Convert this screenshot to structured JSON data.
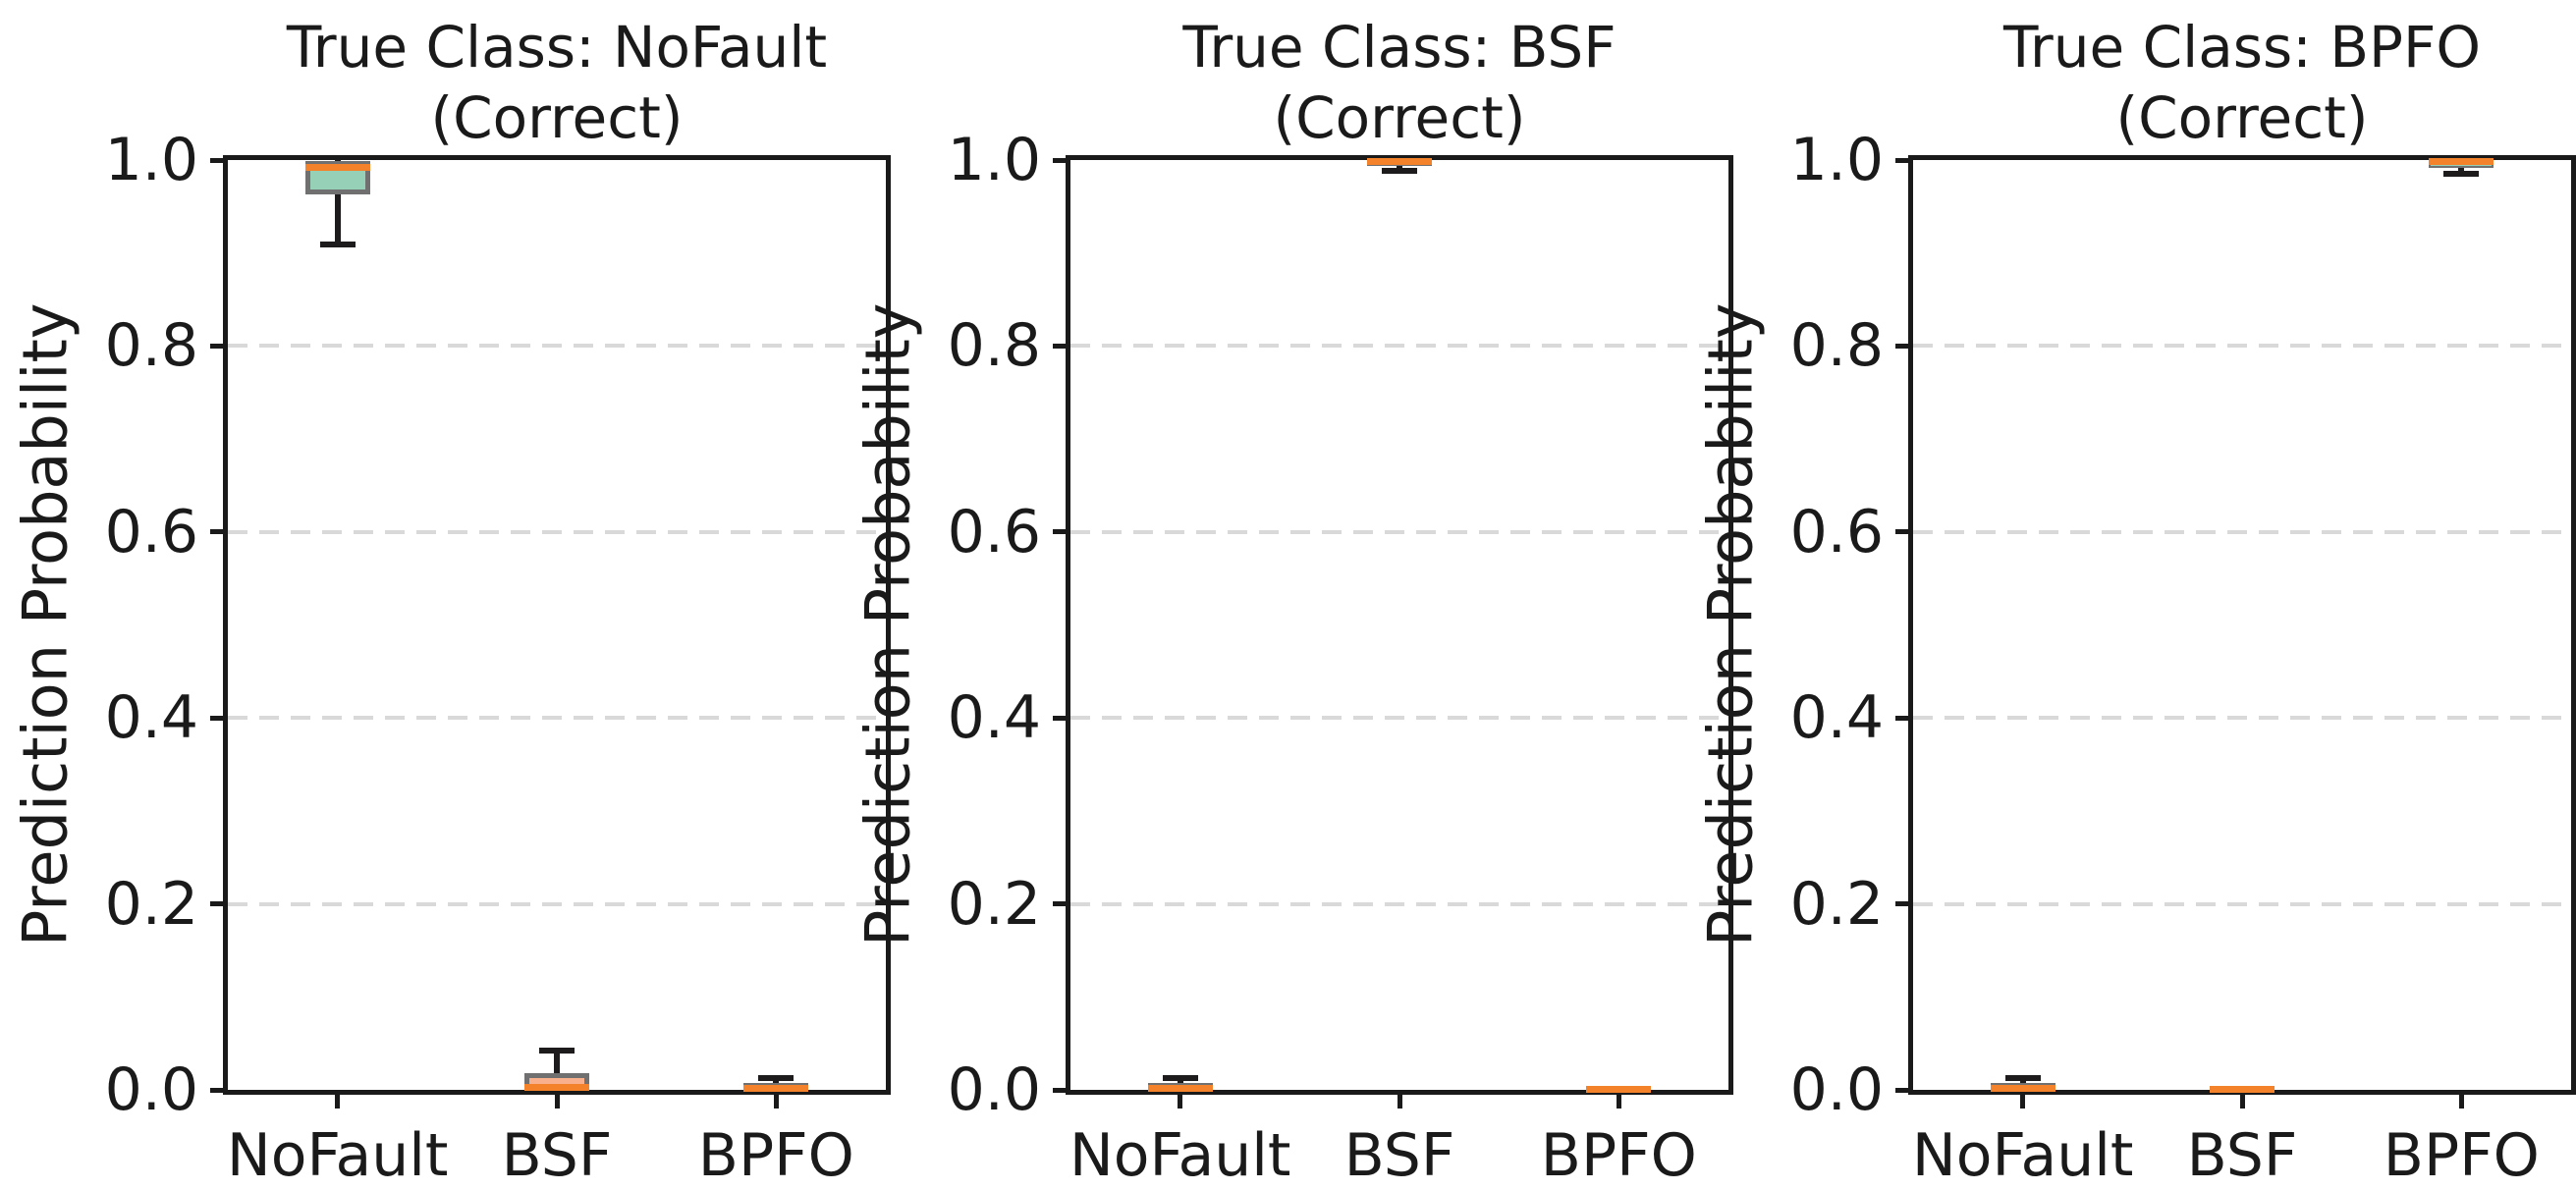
{
  "figure": {
    "ylabel": "Prediction Probability",
    "yticks": [
      {
        "v": 1.0,
        "label": "1.0"
      },
      {
        "v": 0.8,
        "label": "0.8"
      },
      {
        "v": 0.6,
        "label": "0.6"
      },
      {
        "v": 0.4,
        "label": "0.4"
      },
      {
        "v": 0.2,
        "label": "0.2"
      },
      {
        "v": 0.0,
        "label": "0.0"
      }
    ],
    "grid_values": [
      0.2,
      0.4,
      0.6,
      0.8
    ],
    "colors": {
      "true_class_box": "#96d1b7",
      "other_box": "#f8b18c",
      "median": "#f3822a",
      "box_edge": "#707070",
      "whisker": "#1d1b1c",
      "grid": "#d9d9d9",
      "spine": "#1a1a1a",
      "text": "#1a1a1a"
    }
  },
  "chart_data": [
    {
      "type": "boxplot",
      "title_line1": "True Class: NoFault",
      "title_line2": "(Correct)",
      "ylabel": "Prediction Probability",
      "categories": [
        "NoFault",
        "BSF",
        "BPFO"
      ],
      "ylim": [
        0.0,
        1.0
      ],
      "grid": "dashed-horizontal",
      "boxes": [
        {
          "category": "NoFault",
          "whislo": 0.909,
          "q1": 0.963,
          "med": 0.992,
          "q3": 0.999,
          "whishi": 1.0,
          "fill": "true_class"
        },
        {
          "category": "BSF",
          "whislo": 0.0,
          "q1": 0.001,
          "med": 0.003,
          "q3": 0.018,
          "whishi": 0.042,
          "fill": "other"
        },
        {
          "category": "BPFO",
          "whislo": 0.0,
          "q1": 0.001,
          "med": 0.002,
          "q3": 0.007,
          "whishi": 0.013,
          "fill": "other"
        }
      ]
    },
    {
      "type": "boxplot",
      "title_line1": "True Class: BSF",
      "title_line2": "(Correct)",
      "ylabel": "Prediction Probability",
      "categories": [
        "NoFault",
        "BSF",
        "BPFO"
      ],
      "ylim": [
        0.0,
        1.0
      ],
      "grid": "dashed-horizontal",
      "boxes": [
        {
          "category": "NoFault",
          "whislo": 0.0,
          "q1": 0.001,
          "med": 0.002,
          "q3": 0.007,
          "whishi": 0.013,
          "fill": "other"
        },
        {
          "category": "BSF",
          "whislo": 0.988,
          "q1": 0.994,
          "med": 0.998,
          "q3": 1.0,
          "whishi": 1.0,
          "fill": "true_class"
        },
        {
          "category": "BPFO",
          "whislo": 0.0,
          "q1": 0.0,
          "med": 0.001,
          "q3": 0.002,
          "whishi": 0.003,
          "fill": "other"
        }
      ]
    },
    {
      "type": "boxplot",
      "title_line1": "True Class: BPFO",
      "title_line2": "(Correct)",
      "ylabel": "Prediction Probability",
      "categories": [
        "NoFault",
        "BSF",
        "BPFO"
      ],
      "ylim": [
        0.0,
        1.0
      ],
      "grid": "dashed-horizontal",
      "boxes": [
        {
          "category": "NoFault",
          "whislo": 0.0,
          "q1": 0.001,
          "med": 0.002,
          "q3": 0.007,
          "whishi": 0.013,
          "fill": "other"
        },
        {
          "category": "BSF",
          "whislo": 0.0,
          "q1": 0.0,
          "med": 0.001,
          "q3": 0.002,
          "whishi": 0.003,
          "fill": "other"
        },
        {
          "category": "BPFO",
          "whislo": 0.985,
          "q1": 0.992,
          "med": 0.998,
          "q3": 1.0,
          "whishi": 1.0,
          "fill": "true_class"
        }
      ]
    }
  ]
}
